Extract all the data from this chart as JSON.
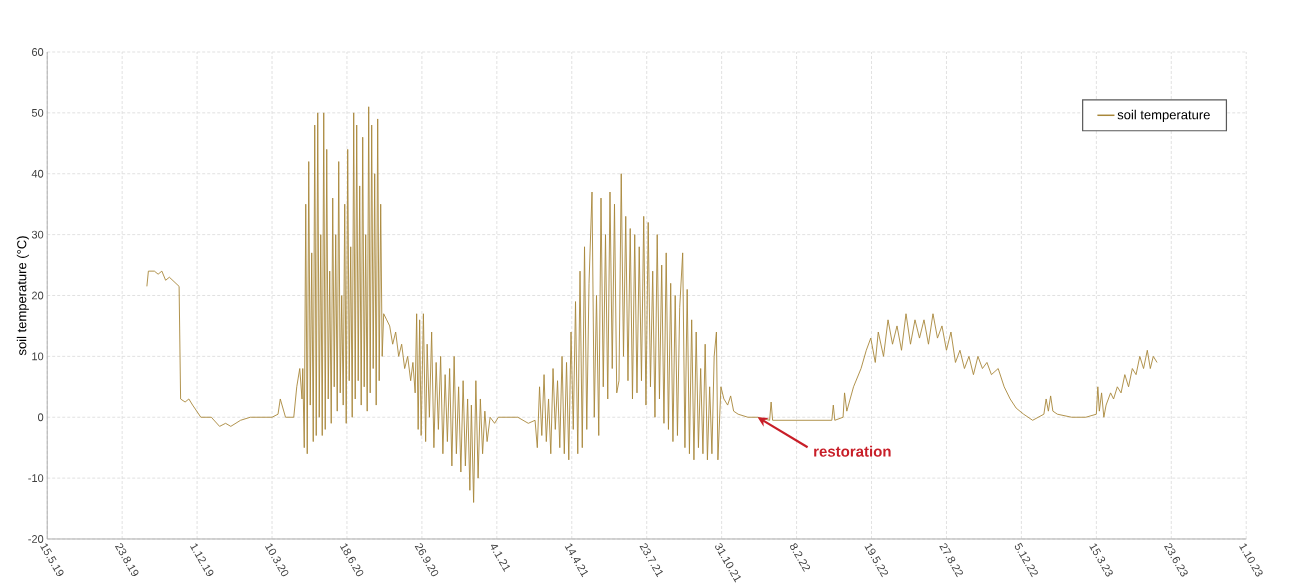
{
  "chart_data": {
    "type": "line",
    "ylabel": "soil temperature (°C)",
    "xlim": [
      "2019-05-15",
      "2023-10-01"
    ],
    "xticks": [
      {
        "value": "2019-05-15",
        "label": "15.5.19"
      },
      {
        "value": "2019-08-23",
        "label": "23.8.19"
      },
      {
        "value": "2019-12-01",
        "label": "1.12.19"
      },
      {
        "value": "2020-03-10",
        "label": "10.3.20"
      },
      {
        "value": "2020-06-18",
        "label": "18.6.20"
      },
      {
        "value": "2020-09-26",
        "label": "26.9.20"
      },
      {
        "value": "2021-01-04",
        "label": "4.1.21"
      },
      {
        "value": "2021-04-14",
        "label": "14.4.21"
      },
      {
        "value": "2021-07-23",
        "label": "23.7.21"
      },
      {
        "value": "2021-10-31",
        "label": "31.10.21"
      },
      {
        "value": "2022-02-08",
        "label": "8.2.22"
      },
      {
        "value": "2022-05-19",
        "label": "19.5.22"
      },
      {
        "value": "2022-08-27",
        "label": "27.8.22"
      },
      {
        "value": "2022-12-05",
        "label": "5.12.22"
      },
      {
        "value": "2023-03-15",
        "label": "15.3.23"
      },
      {
        "value": "2023-06-23",
        "label": "23.6.23"
      },
      {
        "value": "2023-10-01",
        "label": "1.10.23"
      }
    ],
    "ylim": [
      -20,
      60
    ],
    "yticks": [
      -20,
      -10,
      0,
      10,
      20,
      30,
      40,
      50,
      60
    ],
    "grid": true,
    "legend": "top right",
    "line_style": "solid",
    "marker": "none",
    "annotations": [
      {
        "text": "restoration",
        "x": "2021-12-18",
        "y": 0
      }
    ],
    "series": [
      {
        "name": "soil temperature",
        "color": "#a8873a",
        "x": [
          "2019-09-25",
          "2019-09-27",
          "2019-10-05",
          "2019-10-10",
          "2019-10-15",
          "2019-10-20",
          "2019-10-25",
          "2019-11-07",
          "2019-11-09",
          "2019-11-15",
          "2019-11-20",
          "2019-11-25",
          "2019-12-06",
          "2019-12-20",
          "2019-12-31",
          "2020-01-08",
          "2020-01-15",
          "2020-01-28",
          "2020-02-10",
          "2020-03-10",
          "2020-03-18",
          "2020-03-21",
          "2020-03-28",
          "2020-04-08",
          "2020-04-12",
          "2020-04-16",
          "2020-04-19",
          "2020-04-20",
          "2020-04-22",
          "2020-04-24",
          "2020-04-26",
          "2020-04-28",
          "2020-04-30",
          "2020-05-02",
          "2020-05-04",
          "2020-05-06",
          "2020-05-08",
          "2020-05-10",
          "2020-05-12",
          "2020-05-14",
          "2020-05-16",
          "2020-05-18",
          "2020-05-20",
          "2020-05-22",
          "2020-05-24",
          "2020-05-26",
          "2020-05-28",
          "2020-05-30",
          "2020-06-01",
          "2020-06-03",
          "2020-06-05",
          "2020-06-07",
          "2020-06-09",
          "2020-06-11",
          "2020-06-13",
          "2020-06-15",
          "2020-06-17",
          "2020-06-19",
          "2020-06-21",
          "2020-06-23",
          "2020-06-25",
          "2020-06-27",
          "2020-06-29",
          "2020-07-01",
          "2020-07-03",
          "2020-07-05",
          "2020-07-07",
          "2020-07-09",
          "2020-07-11",
          "2020-07-13",
          "2020-07-15",
          "2020-07-17",
          "2020-07-19",
          "2020-07-21",
          "2020-07-23",
          "2020-07-25",
          "2020-07-27",
          "2020-07-29",
          "2020-07-31",
          "2020-08-02",
          "2020-08-04",
          "2020-08-06",
          "2020-08-10",
          "2020-08-14",
          "2020-08-18",
          "2020-08-22",
          "2020-08-26",
          "2020-08-30",
          "2020-09-03",
          "2020-09-07",
          "2020-09-11",
          "2020-09-14",
          "2020-09-17",
          "2020-09-19",
          "2020-09-21",
          "2020-09-23",
          "2020-09-25",
          "2020-09-28",
          "2020-10-01",
          "2020-10-03",
          "2020-10-06",
          "2020-10-09",
          "2020-10-12",
          "2020-10-15",
          "2020-10-18",
          "2020-10-21",
          "2020-10-24",
          "2020-10-27",
          "2020-10-30",
          "2020-11-02",
          "2020-11-05",
          "2020-11-08",
          "2020-11-11",
          "2020-11-14",
          "2020-11-17",
          "2020-11-20",
          "2020-11-23",
          "2020-11-26",
          "2020-11-29",
          "2020-12-01",
          "2020-12-04",
          "2020-12-07",
          "2020-12-10",
          "2020-12-13",
          "2020-12-16",
          "2020-12-19",
          "2020-12-22",
          "2020-12-26",
          "2021-01-01",
          "2021-01-06",
          "2021-01-15",
          "2021-02-01",
          "2021-02-15",
          "2021-02-24",
          "2021-02-27",
          "2021-03-02",
          "2021-03-05",
          "2021-03-08",
          "2021-03-11",
          "2021-03-14",
          "2021-03-17",
          "2021-03-20",
          "2021-03-23",
          "2021-03-26",
          "2021-03-29",
          "2021-04-01",
          "2021-04-04",
          "2021-04-07",
          "2021-04-10",
          "2021-04-13",
          "2021-04-16",
          "2021-04-19",
          "2021-04-22",
          "2021-04-25",
          "2021-04-28",
          "2021-05-01",
          "2021-05-04",
          "2021-05-07",
          "2021-05-11",
          "2021-05-14",
          "2021-05-17",
          "2021-05-20",
          "2021-05-23",
          "2021-05-26",
          "2021-05-29",
          "2021-06-01",
          "2021-06-04",
          "2021-06-07",
          "2021-06-10",
          "2021-06-13",
          "2021-06-16",
          "2021-06-19",
          "2021-06-22",
          "2021-06-25",
          "2021-06-28",
          "2021-07-01",
          "2021-07-04",
          "2021-07-07",
          "2021-07-10",
          "2021-07-13",
          "2021-07-16",
          "2021-07-19",
          "2021-07-22",
          "2021-07-25",
          "2021-07-28",
          "2021-07-31",
          "2021-08-03",
          "2021-08-06",
          "2021-08-09",
          "2021-08-12",
          "2021-08-15",
          "2021-08-18",
          "2021-08-21",
          "2021-08-24",
          "2021-08-27",
          "2021-08-30",
          "2021-09-02",
          "2021-09-05",
          "2021-09-09",
          "2021-09-12",
          "2021-09-15",
          "2021-09-18",
          "2021-09-21",
          "2021-09-24",
          "2021-09-27",
          "2021-09-30",
          "2021-10-03",
          "2021-10-06",
          "2021-10-09",
          "2021-10-12",
          "2021-10-15",
          "2021-10-18",
          "2021-10-21",
          "2021-10-24",
          "2021-10-26",
          "2021-10-30",
          "2021-11-03",
          "2021-11-08",
          "2021-11-12",
          "2021-11-16",
          "2021-11-22",
          "2021-12-05",
          "2021-12-18",
          "2022-01-03",
          "2022-01-05",
          "2022-01-07",
          "2022-02-15",
          "2022-03-27",
          "2022-03-29",
          "2022-03-31",
          "2022-04-11",
          "2022-04-13",
          "2022-04-16",
          "2022-04-25",
          "2022-05-05",
          "2022-05-12",
          "2022-05-18",
          "2022-05-24",
          "2022-05-28",
          "2022-06-04",
          "2022-06-10",
          "2022-06-16",
          "2022-06-22",
          "2022-06-28",
          "2022-07-04",
          "2022-07-10",
          "2022-07-16",
          "2022-07-22",
          "2022-07-28",
          "2022-08-03",
          "2022-08-09",
          "2022-08-15",
          "2022-08-21",
          "2022-08-27",
          "2022-09-02",
          "2022-09-08",
          "2022-09-14",
          "2022-09-20",
          "2022-09-26",
          "2022-10-02",
          "2022-10-08",
          "2022-10-14",
          "2022-10-20",
          "2022-10-26",
          "2022-11-04",
          "2022-11-12",
          "2022-11-20",
          "2022-11-28",
          "2022-12-08",
          "2022-12-20",
          "2023-01-04",
          "2023-01-07",
          "2023-01-10",
          "2023-01-13",
          "2023-01-16",
          "2023-01-22",
          "2023-02-10",
          "2023-03-01",
          "2023-03-15",
          "2023-03-17",
          "2023-03-19",
          "2023-03-22",
          "2023-03-25",
          "2023-03-28",
          "2023-04-03",
          "2023-04-07",
          "2023-04-12",
          "2023-04-17",
          "2023-04-22",
          "2023-04-27",
          "2023-05-02",
          "2023-05-07",
          "2023-05-12",
          "2023-05-17",
          "2023-05-22",
          "2023-05-26",
          "2023-05-30",
          "2023-06-04"
        ],
        "values": [
          21.5,
          24,
          24,
          23.5,
          24,
          22.5,
          23,
          21.5,
          3,
          2.5,
          3,
          2,
          0,
          0,
          -1.5,
          -1,
          -1.5,
          -0.5,
          0,
          0,
          0.5,
          3,
          0,
          0,
          5,
          8,
          3,
          8,
          -5,
          35,
          -6,
          42,
          2,
          27,
          -4,
          48,
          -3,
          50,
          0,
          30,
          -3,
          50,
          -2,
          44,
          3,
          24,
          -1,
          36,
          5,
          30,
          1,
          42,
          4,
          20,
          2,
          35,
          -1,
          44,
          6,
          28,
          0,
          50,
          3,
          48,
          6,
          38,
          2,
          46,
          5,
          30,
          1,
          51,
          4,
          48,
          8,
          40,
          2,
          49,
          6,
          35,
          10,
          17,
          16,
          15,
          12,
          14,
          10,
          12,
          8,
          10,
          6,
          9,
          4,
          17,
          -2,
          16,
          -3,
          17,
          -4,
          12,
          0,
          14,
          -5,
          9,
          -2,
          10,
          -6,
          7,
          -4,
          8,
          -8,
          10,
          -6,
          5,
          -9,
          6,
          -8,
          3,
          -12,
          2,
          -14,
          6,
          -10,
          3,
          -6,
          1,
          -4,
          0,
          -1,
          0,
          0,
          0,
          -1,
          -0.5,
          -5,
          5,
          -3,
          7,
          -4,
          3,
          -6,
          8,
          -2,
          6,
          -5,
          10,
          -6,
          9,
          -7,
          14,
          -2,
          19,
          -6,
          24,
          -5,
          28,
          -2,
          22,
          37,
          0,
          20,
          -3,
          36,
          5,
          30,
          3,
          37,
          8,
          35,
          4,
          6,
          40,
          10,
          33,
          6,
          31,
          3,
          30,
          4,
          28,
          6,
          33,
          2,
          32,
          5,
          24,
          0,
          30,
          3,
          25,
          -1,
          27,
          -2,
          22,
          -4,
          20,
          -3,
          18,
          27,
          -5,
          21,
          -6,
          16,
          -7,
          14,
          -5,
          8,
          -6,
          12,
          -7,
          5,
          -6,
          10,
          14,
          -7,
          5,
          3,
          2,
          3.5,
          1,
          0.5,
          0,
          0,
          -0.5,
          2.5,
          -0.5,
          -0.5,
          -0.5,
          2,
          -0.5,
          0,
          4,
          1,
          5,
          8,
          11,
          13,
          9,
          14,
          10,
          16,
          12,
          15,
          11,
          17,
          12,
          16,
          13,
          16,
          12,
          17,
          13,
          15,
          11,
          14,
          9,
          11,
          8,
          10,
          7,
          10,
          8,
          9,
          7,
          8,
          5,
          3,
          1.5,
          0.5,
          -0.5,
          0.5,
          3,
          1,
          3.5,
          1,
          0.5,
          0,
          0,
          0.5,
          5,
          1,
          4,
          0,
          2,
          4,
          3,
          5,
          4,
          7,
          5,
          8,
          7,
          10,
          8,
          11,
          8,
          10,
          9
        ]
      }
    ]
  }
}
